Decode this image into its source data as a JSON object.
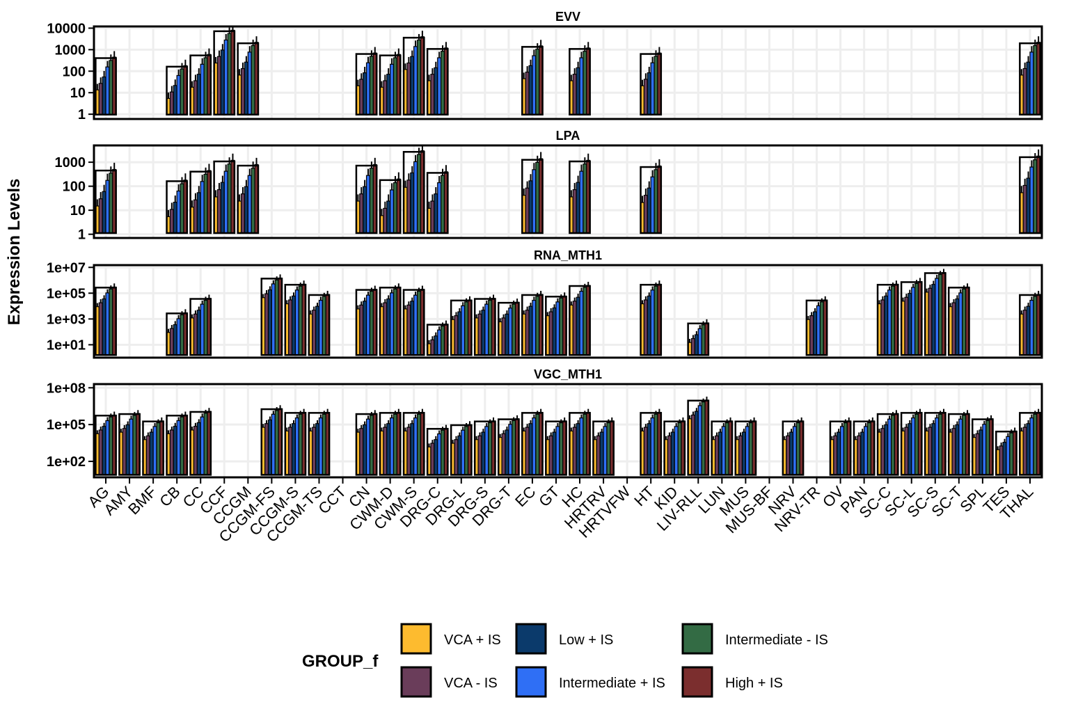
{
  "chart_data": {
    "type": "bar",
    "ylabel": "Expression Levels",
    "y_scale": "log10",
    "grid": true,
    "categories": [
      "AG",
      "AMY",
      "BMF",
      "CB",
      "CC",
      "CCF",
      "CCGM",
      "CCGM-FS",
      "CCGM-S",
      "CCGM-TS",
      "CCT",
      "CN",
      "CWM-D",
      "CWM-S",
      "DRG-C",
      "DRG-L",
      "DRG-S",
      "DRG-T",
      "EC",
      "GT",
      "HC",
      "HRTRV",
      "HRTVFW",
      "HT",
      "KID",
      "LIV-RLL",
      "LUN",
      "MUS",
      "MUS-BF",
      "NRV",
      "NRV-TR",
      "OV",
      "PAN",
      "SC-C",
      "SC-L",
      "SC-S",
      "SC-T",
      "SPL",
      "TES",
      "THAL"
    ],
    "legend": {
      "title": "GROUP_f",
      "placement": "bottom",
      "entries": [
        {
          "name": "VCA + IS",
          "color": "#FDBB2F"
        },
        {
          "name": "VCA - IS",
          "color": "#6A3D5A"
        },
        {
          "name": "Low + IS",
          "color": "#0B3A6B"
        },
        {
          "name": "Intermediate + IS",
          "color": "#2F6FF5"
        },
        {
          "name": "Intermediate - IS",
          "color": "#336B44"
        },
        {
          "name": "High + IS",
          "color": "#7B2E2E"
        }
      ]
    },
    "panels": [
      {
        "title": "EVV",
        "ylim": [
          0.6,
          12000
        ],
        "ticks": [
          1,
          10,
          100,
          1000,
          10000
        ],
        "tick_labels": [
          "1",
          "10",
          "100",
          "1000",
          "10000"
        ],
        "values": {
          "AG": 450,
          "AMY": null,
          "BMF": null,
          "CB": 180,
          "CC": 600,
          "CCF": 8000,
          "CCGM": 2200,
          "CCGM-FS": null,
          "CCGM-S": null,
          "CCGM-TS": null,
          "CCT": null,
          "CN": 700,
          "CWM-D": 600,
          "CWM-S": 4000,
          "DRG-C": 1200,
          "DRG-L": null,
          "DRG-S": null,
          "DRG-T": null,
          "EC": 1500,
          "GT": null,
          "HC": 1200,
          "HRTRV": null,
          "HRTVFW": null,
          "HT": 700,
          "KID": null,
          "LIV-RLL": null,
          "LUN": null,
          "MUS": null,
          "MUS-BF": null,
          "NRV": null,
          "NRV-TR": null,
          "OV": null,
          "PAN": null,
          "SC-C": null,
          "SC-L": null,
          "SC-S": null,
          "SC-T": null,
          "SPL": null,
          "TES": null,
          "THAL": 2200
        }
      },
      {
        "title": "LPA",
        "ylim": [
          0.7,
          5000
        ],
        "ticks": [
          1,
          10,
          100,
          1000
        ],
        "tick_labels": [
          "1",
          "10",
          "100",
          "1000"
        ],
        "values": {
          "AG": 500,
          "AMY": null,
          "BMF": null,
          "CB": 180,
          "CC": 450,
          "CCF": 1200,
          "CCGM": 800,
          "CCGM-FS": null,
          "CCGM-S": null,
          "CCGM-TS": null,
          "CCT": null,
          "CN": 800,
          "CWM-D": 200,
          "CWM-S": 3000,
          "DRG-C": 400,
          "DRG-L": null,
          "DRG-S": null,
          "DRG-T": null,
          "EC": 1400,
          "GT": null,
          "HC": 1200,
          "HRTRV": null,
          "HRTVFW": null,
          "HT": 700,
          "KID": null,
          "LIV-RLL": null,
          "LUN": null,
          "MUS": null,
          "MUS-BF": null,
          "NRV": null,
          "NRV-TR": null,
          "OV": null,
          "PAN": null,
          "SC-C": null,
          "SC-L": null,
          "SC-S": null,
          "SC-T": null,
          "SPL": null,
          "TES": null,
          "THAL": 1800
        }
      },
      {
        "title": "RNA_MTH1",
        "ylim": [
          1,
          15000000
        ],
        "ticks": [
          10,
          1000,
          100000,
          10000000
        ],
        "tick_labels": [
          "1e+01",
          "1e+03",
          "1e+05",
          "1e+07"
        ],
        "values": {
          "AG": 300000,
          "AMY": null,
          "BMF": null,
          "CB": 3000,
          "CC": 40000,
          "CCF": null,
          "CCGM": null,
          "CCGM-FS": 1500000,
          "CCGM-S": 500000,
          "CCGM-TS": 80000,
          "CCT": null,
          "CN": 200000,
          "CWM-D": 300000,
          "CWM-S": 200000,
          "DRG-C": 400,
          "DRG-L": 30000,
          "DRG-S": 40000,
          "DRG-T": 20000,
          "EC": 80000,
          "GT": 60000,
          "HC": 400000,
          "HRTRV": null,
          "HRTVFW": null,
          "HT": 500000,
          "KID": null,
          "LIV-RLL": 500,
          "LUN": null,
          "MUS": null,
          "MUS-BF": null,
          "NRV": null,
          "NRV-TR": 30000,
          "OV": null,
          "PAN": null,
          "SC-C": 500000,
          "SC-L": 800000,
          "SC-S": 4000000,
          "SC-T": 300000,
          "SPL": null,
          "TES": null,
          "THAL": 80000
        }
      },
      {
        "title": "VGC_MTH1",
        "ylim": [
          5,
          200000000
        ],
        "ticks": [
          100,
          100000,
          100000000
        ],
        "tick_labels": [
          "1e+02",
          "1e+05",
          "1e+08"
        ],
        "values": {
          "AG": 600000,
          "AMY": 800000,
          "BMF": 200000,
          "CB": 600000,
          "CC": 1200000,
          "CCF": null,
          "CCGM": null,
          "CCGM-FS": 2000000,
          "CCGM-S": 1000000,
          "CCGM-TS": 1000000,
          "CCT": null,
          "CN": 800000,
          "CWM-D": 1000000,
          "CWM-S": 1000000,
          "DRG-C": 50000,
          "DRG-L": 100000,
          "DRG-S": 200000,
          "DRG-T": 300000,
          "EC": 1000000,
          "GT": 200000,
          "HC": 1000000,
          "HRTRV": 200000,
          "HRTVFW": null,
          "HT": 1000000,
          "KID": 200000,
          "LIV-RLL": 10000000,
          "LUN": 200000,
          "MUS": 200000,
          "MUS-BF": null,
          "NRV": 200000,
          "NRV-TR": null,
          "OV": 200000,
          "PAN": 200000,
          "SC-C": 800000,
          "SC-L": 1000000,
          "SC-S": 1000000,
          "SC-T": 800000,
          "SPL": 300000,
          "TES": 30000,
          "THAL": 1000000
        }
      }
    ]
  }
}
